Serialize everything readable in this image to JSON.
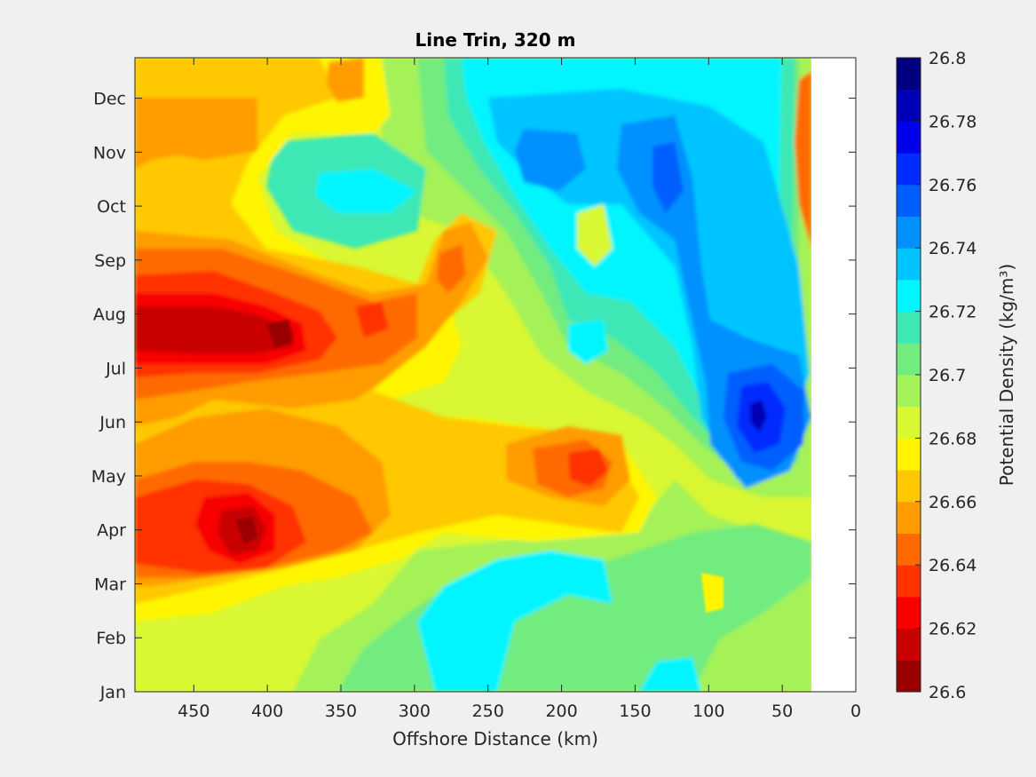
{
  "chart_data": {
    "type": "heatmap",
    "subtype": "filled-contour",
    "title": "Line Trin, 320 m",
    "xlabel": "Offshore Distance (km)",
    "ylabel": "",
    "x_reversed": true,
    "xlim": [
      0,
      490
    ],
    "x_ticks": [
      "450",
      "400",
      "350",
      "300",
      "250",
      "200",
      "150",
      "100",
      "50",
      "0"
    ],
    "y_ticks": [
      "Jan",
      "Feb",
      "Mar",
      "Apr",
      "May",
      "Jun",
      "Jul",
      "Aug",
      "Sep",
      "Oct",
      "Nov",
      "Dec"
    ],
    "data_x_extent_km": [
      30,
      490
    ],
    "colorbar": {
      "label": "Potential Density (kg/m³)",
      "min": 26.6,
      "max": 26.8,
      "step": 0.01,
      "tick_labels": [
        "26.6",
        "26.62",
        "26.64",
        "26.66",
        "26.68",
        "26.7",
        "26.72",
        "26.74",
        "26.76",
        "26.78",
        "26.8"
      ],
      "colormap": "jet",
      "colors": [
        "#9a0000",
        "#c80000",
        "#f80000",
        "#ff3200",
        "#ff6a00",
        "#ff9c00",
        "#ffc800",
        "#fff500",
        "#d9f733",
        "#a4f259",
        "#72eb7f",
        "#3de8b5",
        "#00f5ff",
        "#00c4ff",
        "#0091ff",
        "#005eff",
        "#002cff",
        "#0000eb",
        "#0000b7",
        "#000080"
      ]
    },
    "features": [
      {
        "x": 410,
        "month": "Aug",
        "value": 26.6,
        "kind": "dense-minimum"
      },
      {
        "x": 385,
        "month": "Aug",
        "value": 26.61,
        "kind": "minimum"
      },
      {
        "x": 415,
        "month": "Apr",
        "value": 26.61,
        "kind": "minimum"
      },
      {
        "x": 180,
        "month": "May",
        "value": 26.64,
        "kind": "minimum"
      },
      {
        "x": 70,
        "month": "Jun",
        "value": 26.78,
        "kind": "maximum"
      },
      {
        "x": 125,
        "month": "Nov",
        "value": 26.77,
        "kind": "maximum"
      },
      {
        "x": 210,
        "month": "Nov",
        "value": 26.74,
        "kind": "maximum"
      },
      {
        "x": 175,
        "month": "Jul",
        "value": 26.73,
        "kind": "maximum"
      }
    ]
  }
}
